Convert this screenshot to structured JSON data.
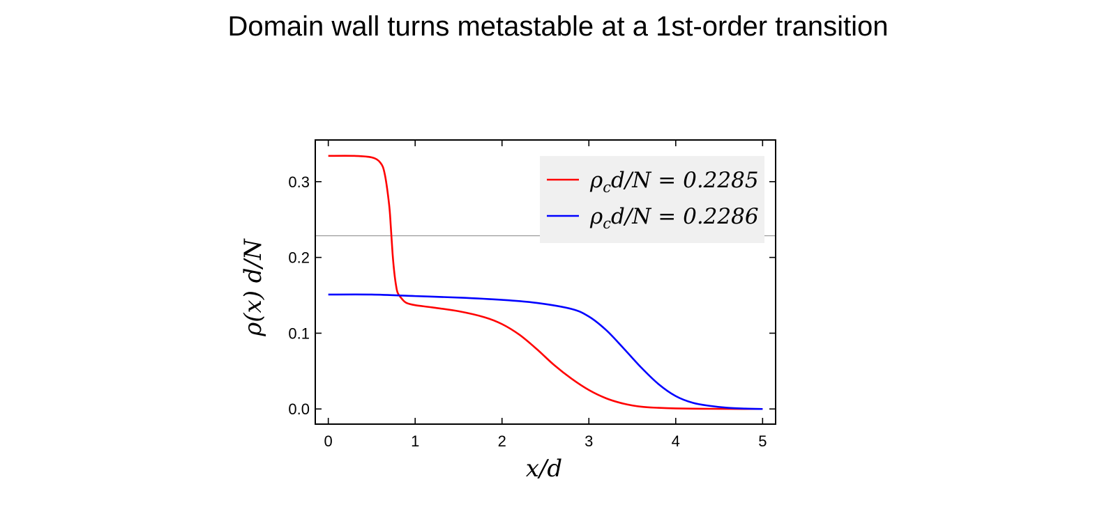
{
  "title": "Domain wall turns metastable at a 1st-order transition",
  "chart_data": {
    "type": "line",
    "title": "Domain wall turns metastable at a 1st-order transition",
    "xlabel": "x/d",
    "ylabel": "ρ(x) d/N",
    "xlim": [
      -0.15,
      5.15
    ],
    "ylim": [
      -0.02,
      0.355
    ],
    "xticks": [
      0,
      1,
      2,
      3,
      4,
      5
    ],
    "xtick_labels": [
      "0",
      "1",
      "2",
      "3",
      "4",
      "5"
    ],
    "yticks": [
      0.0,
      0.1,
      0.2,
      0.3
    ],
    "ytick_labels": [
      "0.0",
      "0.1",
      "0.2",
      "0.3"
    ],
    "reference_line": {
      "orientation": "horizontal",
      "y": 0.2286,
      "color": "#999999"
    },
    "legend": {
      "position": "top-right"
    },
    "series": [
      {
        "name": "ρ_c d/N = 0.2285",
        "label_main": "ρ",
        "label_sub": "c",
        "label_rest": "d/N = 0.2285",
        "color": "#ff0000",
        "x": [
          0,
          0.3,
          0.5,
          0.6,
          0.65,
          0.7,
          0.72,
          0.74,
          0.76,
          0.78,
          0.8,
          0.85,
          0.9,
          1.0,
          1.2,
          1.5,
          1.8,
          2.0,
          2.2,
          2.4,
          2.6,
          2.8,
          3.0,
          3.2,
          3.4,
          3.6,
          3.8,
          4.0,
          4.3,
          4.6,
          5.0
        ],
        "y": [
          0.334,
          0.334,
          0.332,
          0.325,
          0.31,
          0.27,
          0.24,
          0.205,
          0.18,
          0.163,
          0.153,
          0.145,
          0.14,
          0.137,
          0.134,
          0.129,
          0.121,
          0.112,
          0.098,
          0.079,
          0.058,
          0.04,
          0.025,
          0.014,
          0.007,
          0.003,
          0.0015,
          0.0007,
          0.0003,
          0.0001,
          0.0
        ]
      },
      {
        "name": "ρ_c d/N = 0.2286",
        "label_main": "ρ",
        "label_sub": "c",
        "label_rest": "d/N = 0.2286",
        "color": "#0000ff",
        "x": [
          0,
          0.5,
          1.0,
          1.5,
          2.0,
          2.4,
          2.8,
          3.0,
          3.2,
          3.4,
          3.6,
          3.8,
          4.0,
          4.2,
          4.4,
          4.6,
          4.8,
          5.0
        ],
        "y": [
          0.151,
          0.151,
          0.149,
          0.147,
          0.144,
          0.14,
          0.132,
          0.122,
          0.104,
          0.08,
          0.055,
          0.033,
          0.017,
          0.008,
          0.004,
          0.0015,
          0.0005,
          0.0
        ]
      }
    ]
  }
}
